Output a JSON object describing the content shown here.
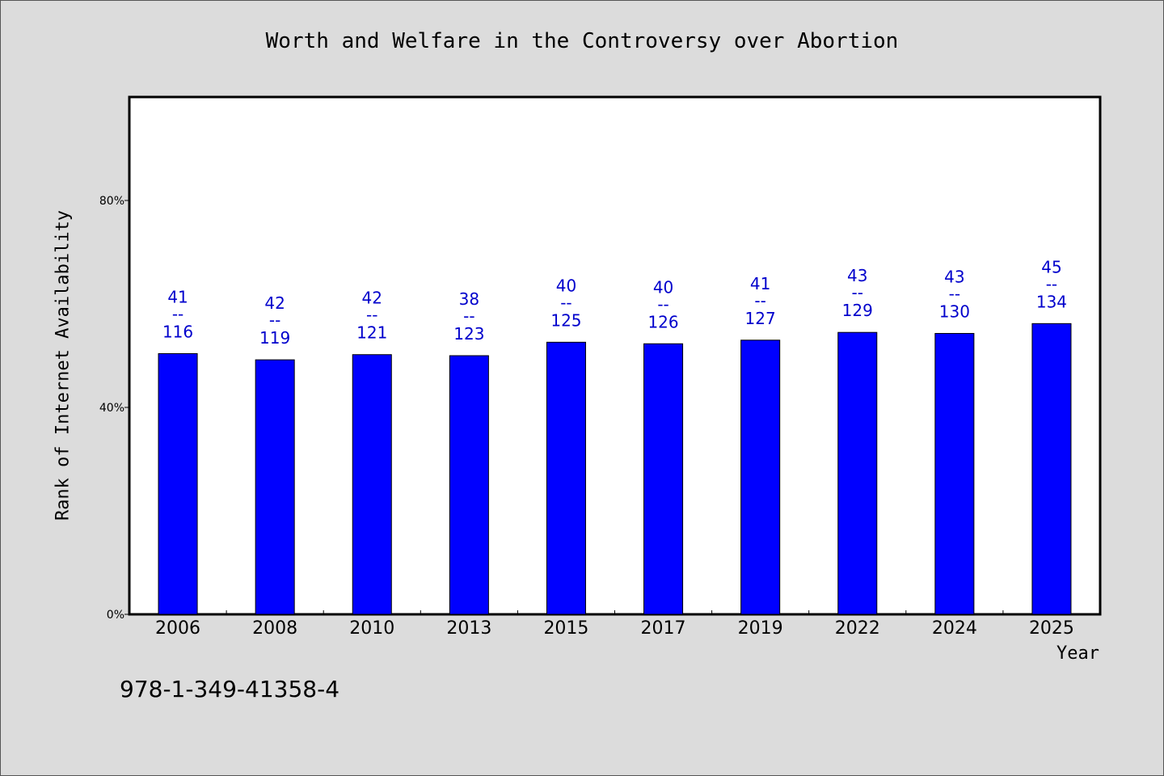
{
  "chart_data": {
    "type": "bar",
    "title": "Worth and Welfare in the Controversy over Abortion",
    "xlabel": "Year",
    "ylabel": "Rank of Internet Availability",
    "categories": [
      "2006",
      "2008",
      "2010",
      "2013",
      "2015",
      "2017",
      "2019",
      "2022",
      "2024",
      "2025"
    ],
    "values": [
      50.4,
      49.2,
      50.2,
      50.0,
      52.6,
      52.3,
      53.0,
      54.5,
      54.3,
      56.2
    ],
    "bar_labels": [
      {
        "top": "41",
        "mid": "--",
        "bottom": "116"
      },
      {
        "top": "42",
        "mid": "--",
        "bottom": "119"
      },
      {
        "top": "42",
        "mid": "--",
        "bottom": "121"
      },
      {
        "top": "38",
        "mid": "--",
        "bottom": "123"
      },
      {
        "top": "40",
        "mid": "--",
        "bottom": "125"
      },
      {
        "top": "40",
        "mid": "--",
        "bottom": "126"
      },
      {
        "top": "41",
        "mid": "--",
        "bottom": "127"
      },
      {
        "top": "43",
        "mid": "--",
        "bottom": "129"
      },
      {
        "top": "43",
        "mid": "--",
        "bottom": "130"
      },
      {
        "top": "45",
        "mid": "--",
        "bottom": "134"
      }
    ],
    "ylim": [
      0,
      100
    ],
    "yticks": [
      0,
      40,
      80
    ],
    "ytick_labels": [
      "0%",
      "40%",
      "80%"
    ],
    "grid": false,
    "colors": {
      "bar": "#0000ff",
      "bar_label": "#0000cc",
      "plot_bg": "#ffffff",
      "page_bg": "#dcdcdc"
    }
  },
  "footer": {
    "isbn": "978-1-349-41358-4"
  }
}
